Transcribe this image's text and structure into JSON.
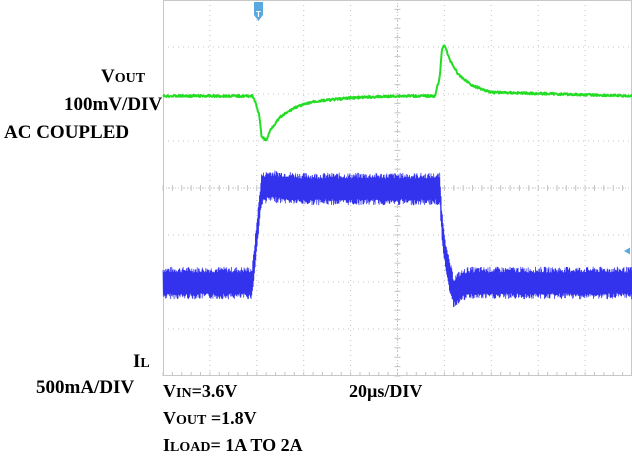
{
  "chart_data": {
    "type": "line",
    "x_unit": "µs",
    "x_per_div": 20,
    "x_range": [
      0,
      200
    ],
    "x_divisions": 10,
    "y_divisions": 8,
    "grid": true,
    "trigger_marker": "T",
    "channels": [
      {
        "name": "VOUT",
        "label_main": "V",
        "label_sub": "OUT",
        "scale": "100mV/DIV",
        "coupling": "AC COUPLED",
        "color": "#22dd22",
        "y_unit": "mV",
        "x": [
          0,
          20,
          38,
          39,
          41,
          42,
          44,
          46,
          50,
          56,
          64,
          80,
          100,
          114,
          116,
          118,
          119,
          120,
          122,
          126,
          132,
          140,
          200
        ],
        "y": [
          0,
          0,
          0,
          -8,
          -40,
          -85,
          -95,
          -70,
          -45,
          -25,
          -12,
          -4,
          0,
          0,
          0,
          40,
          100,
          110,
          80,
          45,
          22,
          8,
          0
        ]
      },
      {
        "name": "IL",
        "label_main": "I",
        "label_sub": "L",
        "scale": "500mA/DIV",
        "color": "#3333ee",
        "y_unit": "A",
        "x": [
          0,
          20,
          38,
          40,
          42,
          45,
          60,
          100,
          118,
          119,
          121,
          124,
          126,
          130,
          140,
          200
        ],
        "y": [
          1.0,
          1.0,
          1.0,
          1.5,
          2.0,
          2.03,
          2.0,
          2.0,
          2.0,
          1.6,
          1.2,
          0.9,
          0.95,
          1.0,
          1.0,
          1.0
        ]
      }
    ],
    "settings": {
      "vin": {
        "main": "V",
        "sub": "IN",
        "value": "=3.6V"
      },
      "vout": {
        "main": "V",
        "sub": "OUT",
        "value": " =1.8V"
      },
      "iload": {
        "main": "I",
        "sub": "LOAD",
        "value": "= 1A TO 2A"
      },
      "timebase": "20µs/DIV"
    }
  }
}
